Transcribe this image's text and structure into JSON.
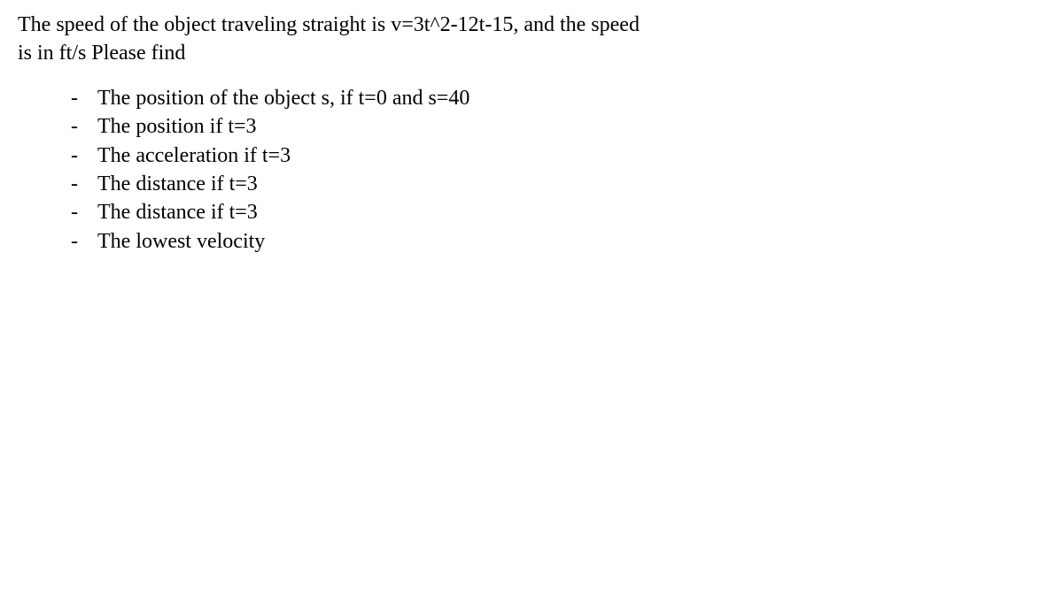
{
  "document": {
    "intro_line1": "The speed of the object traveling straight is v=3t^2-12t-15, and the speed",
    "intro_line2": "is in ft/s Please find",
    "items": [
      "The position of the object s, if t=0 and s=40",
      "The position if t=3",
      "The acceleration if t=3",
      "The distance if t=3",
      "The distance if t=3",
      "The lowest velocity"
    ],
    "typography": {
      "font_family": "Times New Roman",
      "font_size_pt": 18,
      "color": "#000000",
      "background_color": "#ffffff"
    }
  }
}
